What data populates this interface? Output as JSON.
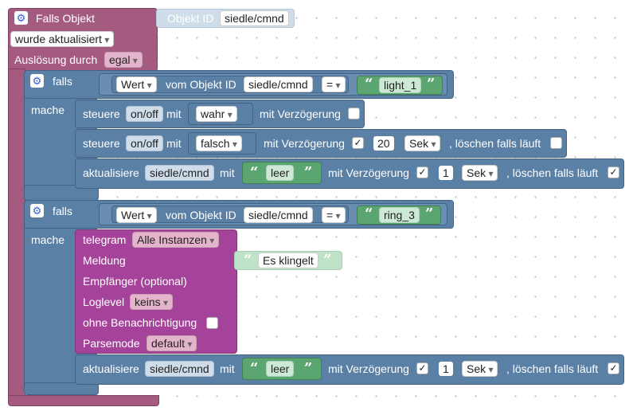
{
  "trigger": {
    "title": "Falls Objekt",
    "id_label": "Objekt ID",
    "id_value": "siedle/cmnd",
    "event": "wurde aktualisiert",
    "trigger_by_label": "Auslösung durch",
    "trigger_by_value": "egal"
  },
  "if1": {
    "falls": "falls",
    "mache": "mache",
    "wert": "Wert",
    "vom_objekt": "vom Objekt ID",
    "object_id": "siedle/cmnd",
    "operator": "=",
    "compare_text": "light_1",
    "steuere1": {
      "label": "steuere",
      "state": "on/off",
      "mit": "mit",
      "value": "wahr",
      "delay_label": "mit Verzögerung",
      "delay_checked": ""
    },
    "steuere2": {
      "label": "steuere",
      "state": "on/off",
      "mit": "mit",
      "value": "falsch",
      "delay_label": "mit Verzögerung",
      "delay_checked": "✓",
      "delay_value": "20",
      "delay_unit": "Sek",
      "clear_label": ", löschen falls läuft",
      "clear_checked": ""
    },
    "update": {
      "label": "aktualisiere",
      "object": "siedle/cmnd",
      "mit": "mit",
      "text": "leer",
      "delay_label": "mit Verzögerung",
      "delay_checked": "✓",
      "delay_value": "1",
      "delay_unit": "Sek",
      "clear_label": ", löschen falls läuft",
      "clear_checked": "✓"
    }
  },
  "if2": {
    "falls": "falls",
    "mache": "mache",
    "wert": "Wert",
    "vom_objekt": "vom Objekt ID",
    "object_id": "siedle/cmnd",
    "operator": "=",
    "compare_text": "ring_3",
    "telegram": {
      "label": "telegram",
      "instance": "Alle Instanzen",
      "message_label": "Meldung",
      "message_text": "Es klingelt",
      "recipient_label": "Empfänger (optional)",
      "loglevel_label": "Loglevel",
      "loglevel_value": "keins",
      "silent_label": "ohne Benachrichtigung",
      "silent_checked": "",
      "parsemode_label": "Parsemode",
      "parsemode_value": "default"
    },
    "update": {
      "label": "aktualisiere",
      "object": "siedle/cmnd",
      "mit": "mit",
      "text": "leer",
      "delay_label": "mit Verzögerung",
      "delay_checked": "✓",
      "delay_value": "1",
      "delay_unit": "Sek",
      "clear_label": ", löschen falls läuft",
      "clear_checked": "✓"
    }
  },
  "colors": {
    "trigger": "#a55b80",
    "control": "#5b80a5",
    "telegram": "#a5439a",
    "text": "#5ba570"
  },
  "icons": {
    "gear": "gear-icon",
    "checkbox": "checkbox-icon",
    "quote": "quote-icon"
  }
}
